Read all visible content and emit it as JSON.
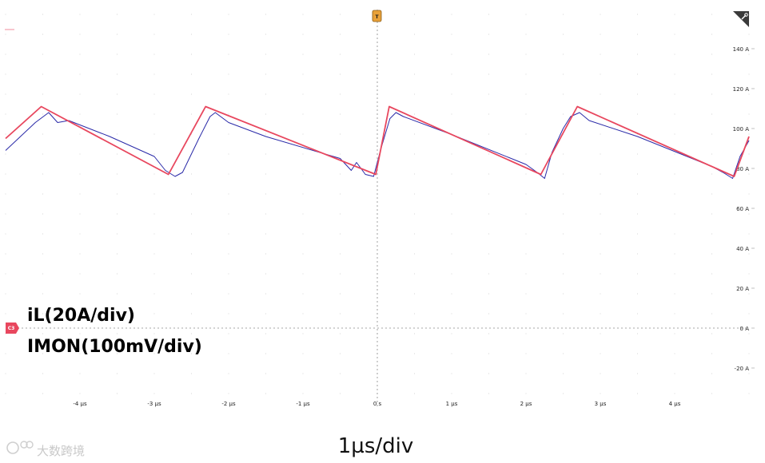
{
  "chart_data": {
    "type": "line",
    "title": "",
    "xlabel": "1µs/div",
    "ylabel": "",
    "x_unit": "µs",
    "y_unit": "A",
    "xlim": [
      -5.0,
      5.0
    ],
    "ylim": [
      -30,
      160
    ],
    "grid": true,
    "x_ticks": [
      {
        "value": -4,
        "label": "-4 µs"
      },
      {
        "value": -3,
        "label": "-3 µs"
      },
      {
        "value": -2,
        "label": "-2 µs"
      },
      {
        "value": -1,
        "label": "-1 µs"
      },
      {
        "value": 0,
        "label": "0 s"
      },
      {
        "value": 1,
        "label": "1 µs"
      },
      {
        "value": 2,
        "label": "2 µs"
      },
      {
        "value": 3,
        "label": "3 µs"
      },
      {
        "value": 4,
        "label": "4 µs"
      }
    ],
    "y_ticks": [
      {
        "value": 140,
        "label": "140 A"
      },
      {
        "value": 120,
        "label": "120 A"
      },
      {
        "value": 100,
        "label": "100 A"
      },
      {
        "value": 80,
        "label": "80 A"
      },
      {
        "value": 60,
        "label": "60 A"
      },
      {
        "value": 40,
        "label": "40 A"
      },
      {
        "value": 20,
        "label": "20 A"
      },
      {
        "value": 0,
        "label": "0 A"
      },
      {
        "value": -20,
        "label": "-20 A"
      }
    ],
    "series": [
      {
        "name": "iL(20A/div)",
        "color": "#e8475e",
        "x": [
          -5.0,
          -4.52,
          -2.81,
          -2.31,
          -0.02,
          0.16,
          2.2,
          2.69,
          4.8,
          5.0
        ],
        "y": [
          95,
          111,
          77,
          111,
          77,
          111,
          77,
          111,
          76,
          96
        ]
      },
      {
        "name": "IMON(100mV/div)",
        "color": "#2a2aa8",
        "x": [
          -5.0,
          -4.6,
          -4.42,
          -4.3,
          -4.15,
          -3.6,
          -3.0,
          -2.85,
          -2.72,
          -2.62,
          -2.4,
          -2.25,
          -2.18,
          -2.0,
          -1.5,
          -0.5,
          -0.35,
          -0.28,
          -0.16,
          -0.05,
          0.05,
          0.17,
          0.25,
          0.35,
          1.0,
          2.0,
          2.15,
          2.25,
          2.35,
          2.5,
          2.6,
          2.72,
          2.85,
          3.5,
          4.5,
          4.65,
          4.78,
          4.88,
          5.0
        ],
        "y": [
          89,
          103,
          108,
          103,
          104,
          96,
          86,
          79,
          76,
          78,
          95,
          106,
          108,
          103,
          96,
          85,
          79,
          83,
          77,
          76,
          90,
          105,
          108,
          106,
          97,
          82,
          78,
          75,
          88,
          100,
          106,
          108,
          104,
          96,
          81,
          78,
          75,
          86,
          94
        ]
      }
    ],
    "legend": [
      {
        "text": "iL(20A/div)",
        "color": "#e8475e"
      },
      {
        "text": "IMON(100mV/div)",
        "color": "#2a2aa8"
      }
    ],
    "markers": {
      "trigger": "T",
      "channel": "C3"
    }
  },
  "timebase_label": "1µs/div",
  "watermark_text": "大数跨境"
}
